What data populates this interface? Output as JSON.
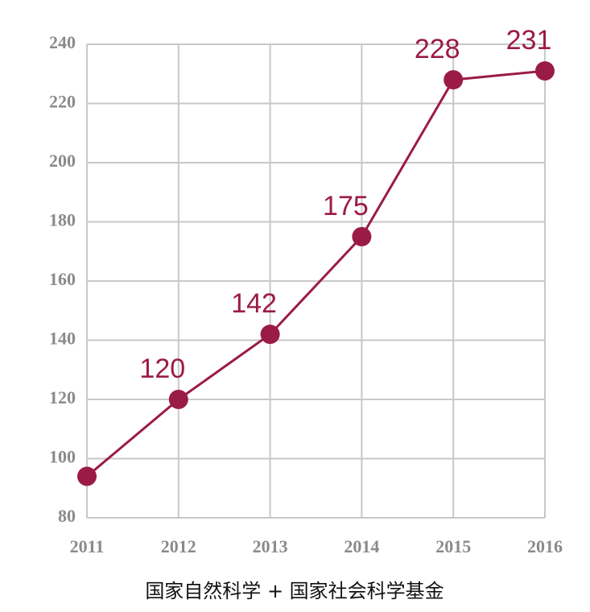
{
  "chart_data": {
    "type": "line",
    "title": "国家自然科学 + 国家社会科学基金",
    "categories": [
      "2011",
      "2012",
      "2013",
      "2014",
      "2015",
      "2016"
    ],
    "values": [
      94,
      120,
      142,
      175,
      228,
      231
    ],
    "value_labels": [
      null,
      "120",
      "142",
      "175",
      "228",
      "231"
    ],
    "color": "#9b1b47",
    "ylim": [
      80,
      240
    ],
    "yticks": [
      80,
      100,
      120,
      140,
      160,
      180,
      200,
      220,
      240
    ],
    "grid": true
  }
}
